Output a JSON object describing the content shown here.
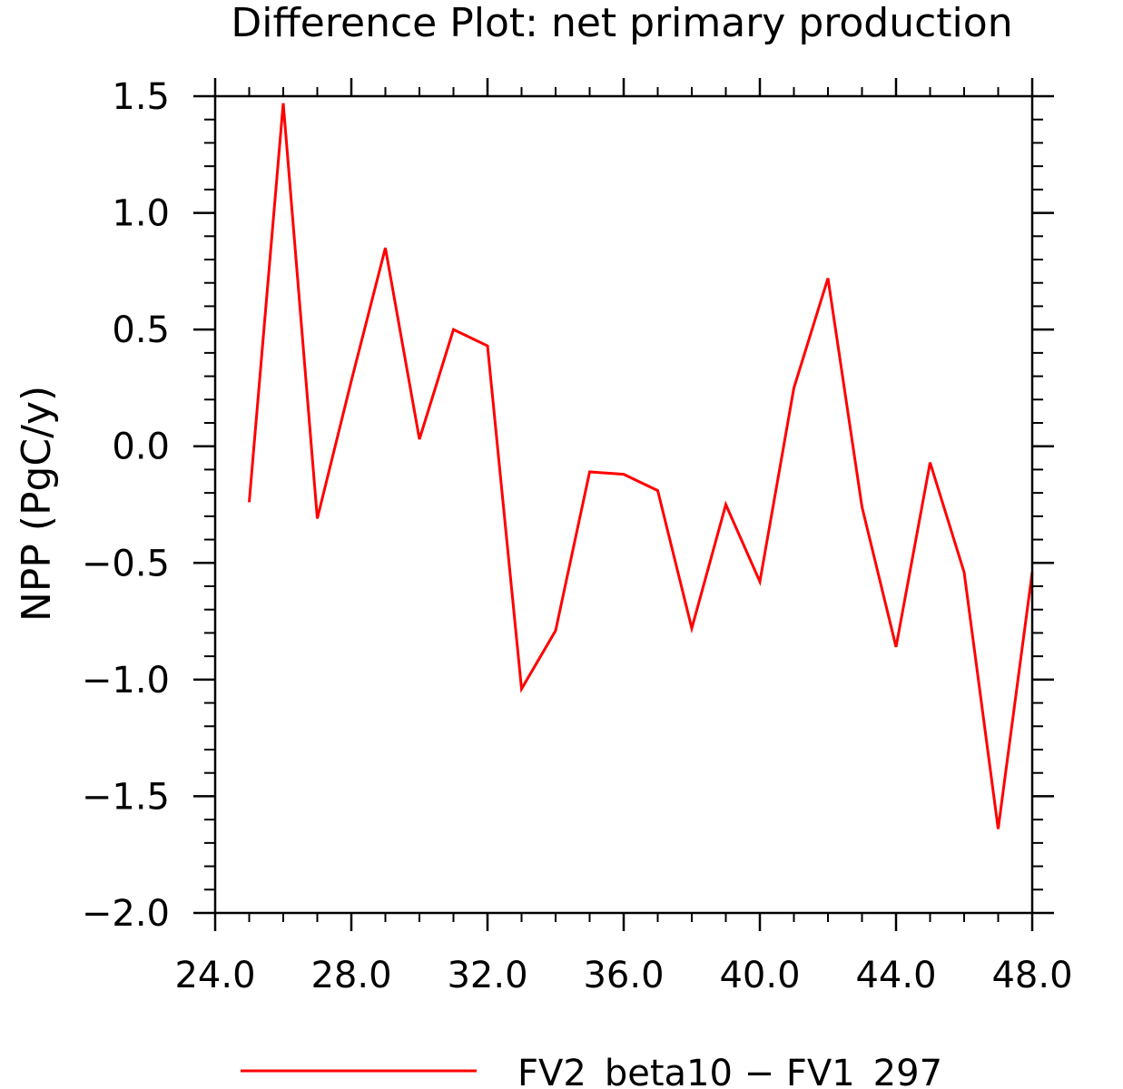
{
  "chart_data": {
    "type": "line",
    "title": "Difference Plot: net primary production",
    "xlabel": "",
    "ylabel": "NPP   (PgC/y)",
    "xlim": [
      24,
      48
    ],
    "ylim": [
      -2.0,
      1.5
    ],
    "x_ticks": [
      24,
      28,
      32,
      36,
      40,
      44,
      48
    ],
    "x_tick_labels": [
      "24.0",
      "28.0",
      "32.0",
      "36.0",
      "40.0",
      "44.0",
      "48.0"
    ],
    "y_ticks": [
      -2.0,
      -1.5,
      -1.0,
      -0.5,
      0.0,
      0.5,
      1.0,
      1.5
    ],
    "y_tick_labels": [
      "−2.0",
      "−1.5",
      "−1.0",
      "−0.5",
      "0.0",
      "0.5",
      "1.0",
      "1.5"
    ],
    "grid": false,
    "legend_position": "bottom-center",
    "series": [
      {
        "name": "FV2_beta10 − FV1_297",
        "color": "#ff0000",
        "x": [
          25,
          26,
          27,
          28,
          29,
          30,
          31,
          32,
          33,
          34,
          35,
          36,
          37,
          38,
          39,
          40,
          41,
          42,
          43,
          44,
          45,
          46,
          47,
          48
        ],
        "values": [
          -0.24,
          1.47,
          -0.31,
          0.28,
          0.85,
          0.03,
          0.5,
          0.43,
          -1.04,
          -0.79,
          -0.11,
          -0.12,
          -0.19,
          -0.78,
          -0.25,
          -0.58,
          0.25,
          0.72,
          -0.26,
          -0.86,
          -0.07,
          -0.54,
          -1.64,
          -0.54
        ]
      }
    ]
  }
}
